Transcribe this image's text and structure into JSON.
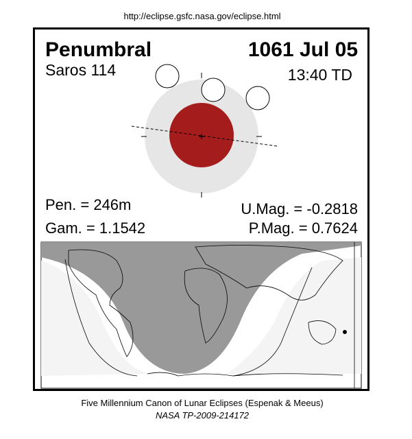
{
  "header": {
    "url": "http://eclipse.gsfc.nasa.gov/eclipse.html"
  },
  "eclipse": {
    "type": "Penumbral",
    "date": "1061 Jul 05",
    "saros": "Saros 114",
    "time": "13:40 TD",
    "pen": "Pen. = 246m",
    "gam": "Gam. = 1.1542",
    "umag": "U.Mag. = -0.2818",
    "pmag": "P.Mag. = 0.7624"
  },
  "footer": {
    "title": "Five Millennium Canon of Lunar Eclipses (Espenak & Meeus)",
    "reference": "NASA TP-2009-214172"
  }
}
